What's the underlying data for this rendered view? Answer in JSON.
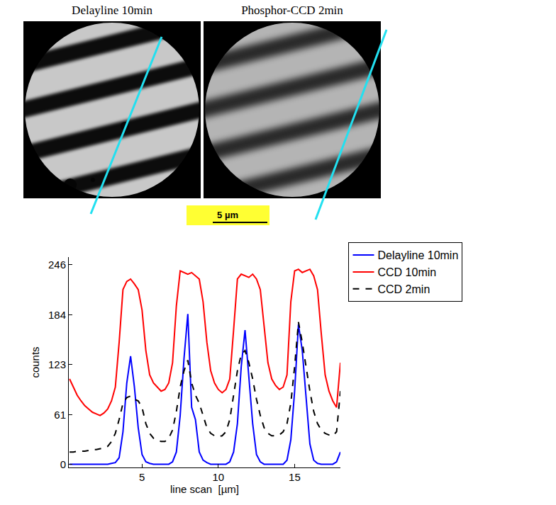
{
  "panels": {
    "images": [
      {
        "title": "Delayline 10min"
      },
      {
        "title": "Phosphor-CCD 2min"
      }
    ],
    "scale_bar": "5 µm"
  },
  "chart_data": {
    "type": "line",
    "x_label": "line scan  [µm]",
    "y_label": "counts",
    "x": [
      0.25,
      0.5,
      0.75,
      1.0,
      1.25,
      1.5,
      1.75,
      2.0,
      2.25,
      2.5,
      2.75,
      3.0,
      3.25,
      3.5,
      3.75,
      4.0,
      4.25,
      4.5,
      4.75,
      5.0,
      5.25,
      5.5,
      5.75,
      6.0,
      6.25,
      6.5,
      6.75,
      7.0,
      7.25,
      7.5,
      7.75,
      8.0,
      8.25,
      8.5,
      8.75,
      9.0,
      9.25,
      9.5,
      9.75,
      10.0,
      10.25,
      10.5,
      10.75,
      11.0,
      11.25,
      11.5,
      11.75,
      12.0,
      12.25,
      12.5,
      12.75,
      13.0,
      13.25,
      13.5,
      13.75,
      14.0,
      14.25,
      14.5,
      14.75,
      15.0,
      15.25,
      15.5,
      15.75,
      16.0,
      16.25,
      16.5,
      16.75,
      17.0,
      17.25,
      17.5,
      17.75,
      18.0
    ],
    "series": [
      {
        "name": "Delayline 10min",
        "color": "#0000ff",
        "line_style": "solid",
        "values": [
          0,
          0,
          0,
          0,
          0,
          0,
          0,
          0,
          0,
          0,
          0,
          1,
          2,
          8,
          40,
          100,
          133,
          95,
          45,
          12,
          3,
          1,
          0,
          0,
          0,
          0,
          0,
          3,
          15,
          60,
          130,
          185,
          70,
          55,
          15,
          5,
          2,
          0,
          0,
          0,
          0,
          0,
          3,
          15,
          50,
          120,
          165,
          110,
          50,
          12,
          3,
          0,
          0,
          0,
          0,
          0,
          0,
          5,
          30,
          90,
          172,
          140,
          80,
          25,
          5,
          1,
          0,
          0,
          0,
          0,
          3,
          15
        ]
      },
      {
        "name": "CCD 10min",
        "color": "#ff0000",
        "line_style": "solid",
        "values": [
          105,
          95,
          85,
          78,
          72,
          68,
          64,
          62,
          60,
          63,
          68,
          78,
          95,
          150,
          215,
          225,
          228,
          222,
          215,
          190,
          140,
          110,
          100,
          95,
          90,
          92,
          100,
          125,
          195,
          238,
          236,
          234,
          236,
          232,
          228,
          200,
          150,
          115,
          100,
          92,
          88,
          92,
          105,
          165,
          228,
          234,
          232,
          230,
          234,
          228,
          215,
          170,
          125,
          105,
          97,
          92,
          95,
          110,
          200,
          238,
          240,
          236,
          238,
          240,
          232,
          215,
          160,
          110,
          90,
          78,
          70,
          125
        ]
      },
      {
        "name": "CCD 2min",
        "color": "#000000",
        "line_style": "dash",
        "values": [
          15,
          15,
          16,
          16,
          16,
          17,
          18,
          18,
          19,
          20,
          22,
          28,
          38,
          55,
          75,
          82,
          84,
          80,
          78,
          70,
          50,
          38,
          32,
          30,
          28,
          28,
          32,
          42,
          65,
          95,
          115,
          128,
          100,
          85,
          75,
          60,
          45,
          38,
          35,
          34,
          35,
          40,
          55,
          85,
          115,
          135,
          140,
          125,
          105,
          80,
          60,
          45,
          38,
          35,
          35,
          36,
          40,
          50,
          75,
          120,
          175,
          150,
          120,
          90,
          65,
          50,
          42,
          38,
          36,
          35,
          40,
          90
        ]
      }
    ],
    "xlim": [
      0.2,
      18.0
    ],
    "xticks": [
      5,
      10,
      15
    ],
    "ylim": [
      -4,
      255
    ],
    "yticks": [
      0,
      61,
      123,
      184,
      246
    ],
    "grid": false,
    "legend": "upper right"
  }
}
